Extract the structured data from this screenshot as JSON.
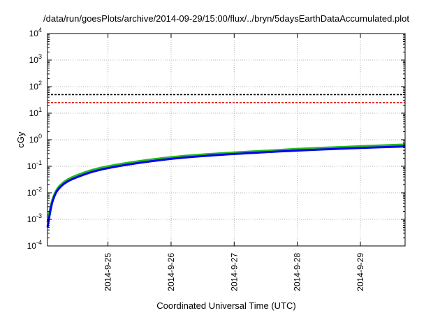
{
  "chart_data": {
    "type": "line",
    "title": "/data/run/goesPlots/archive/2014-09-29/15:00/flux/../bryn/5daysEarthDataAccumulated.plot",
    "xlabel": "Coordinated Universal Time (UTC)",
    "ylabel": "cGy",
    "y_scale": "log",
    "ylim": [
      0.0001,
      10000
    ],
    "y_ticks": [
      {
        "base": "10",
        "exp": "-4"
      },
      {
        "base": "10",
        "exp": "-3"
      },
      {
        "base": "10",
        "exp": "-2"
      },
      {
        "base": "10",
        "exp": "-1"
      },
      {
        "base": "10",
        "exp": "0"
      },
      {
        "base": "10",
        "exp": "1"
      },
      {
        "base": "10",
        "exp": "2"
      },
      {
        "base": "10",
        "exp": "3"
      },
      {
        "base": "10",
        "exp": "4"
      }
    ],
    "xlim": [
      "2014-09-24 01:00",
      "2014-09-29 17:00"
    ],
    "x_ticks": [
      "2014-9-25",
      "2014-9-26",
      "2014-9-27",
      "2014-9-28",
      "2014-9-29"
    ],
    "grid": true,
    "reference_lines": [
      {
        "value": 50,
        "color": "#000000",
        "style": "dashed"
      },
      {
        "value": 25,
        "color": "#e00000",
        "style": "dashed"
      }
    ],
    "series": [
      {
        "color": "#22bb22",
        "x": [
          "2014-09-24 01:00",
          "2014-09-24 03:00",
          "2014-09-24 06:00",
          "2014-09-24 12:00",
          "2014-09-25 00:00",
          "2014-09-26 00:00",
          "2014-09-27 00:00",
          "2014-09-28 00:00",
          "2014-09-29 00:00",
          "2014-09-29 17:00"
        ],
        "values": [
          0.0008,
          0.006,
          0.02,
          0.045,
          0.1,
          0.22,
          0.33,
          0.45,
          0.57,
          0.66
        ]
      },
      {
        "color": "#0000ee",
        "x": [
          "2014-09-24 01:00",
          "2014-09-24 03:00",
          "2014-09-24 06:00",
          "2014-09-24 12:00",
          "2014-09-25 00:00",
          "2014-09-26 00:00",
          "2014-09-27 00:00",
          "2014-09-28 00:00",
          "2014-09-29 00:00",
          "2014-09-29 17:00"
        ],
        "values": [
          0.0005,
          0.005,
          0.017,
          0.038,
          0.085,
          0.19,
          0.29,
          0.39,
          0.49,
          0.56
        ]
      }
    ],
    "colors": {
      "grid": "#b4b4b4",
      "frame": "#000000"
    }
  }
}
